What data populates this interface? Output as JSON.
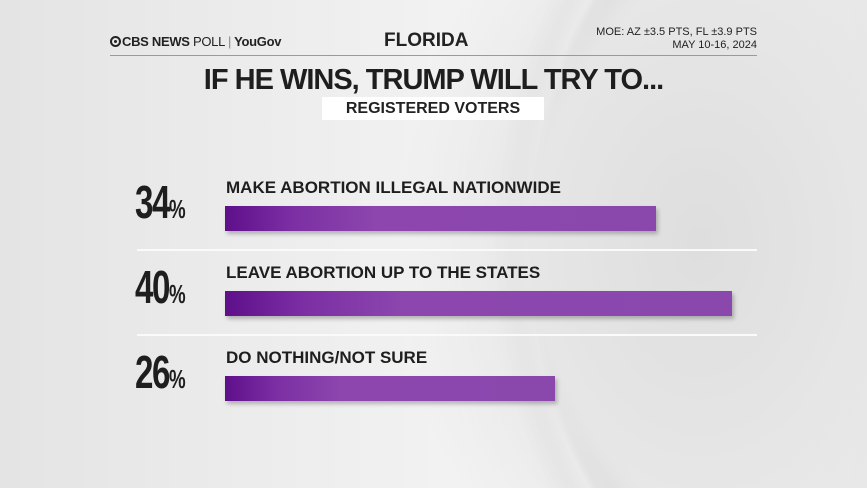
{
  "header": {
    "brand": "CBS NEWS",
    "brand_poll": "POLL",
    "brand_partner": "YouGov",
    "state": "FLORIDA",
    "moe": "MOE: AZ ±3.5 PTS, FL ±3.9 PTS",
    "dates": "MAY 10-16, 2024"
  },
  "colors": {
    "bar": "#8a48ad",
    "bar_dark": "#5e0f8a"
  },
  "chart_data": {
    "type": "bar",
    "orientation": "horizontal",
    "title": "IF HE WINS, TRUMP WILL TRY TO...",
    "subtitle": "REGISTERED VOTERS",
    "categories": [
      "MAKE ABORTION ILLEGAL NATIONWIDE",
      "LEAVE ABORTION UP TO THE STATES",
      "DO NOTHING/NOT SURE"
    ],
    "values": [
      34,
      40,
      26
    ],
    "value_labels": [
      "34",
      "40",
      "26"
    ],
    "unit": "%",
    "xlim": [
      0,
      40
    ],
    "grid": false
  }
}
